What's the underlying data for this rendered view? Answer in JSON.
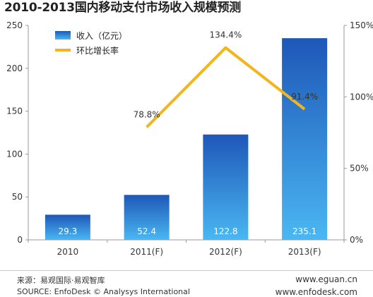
{
  "chart_data": {
    "type": "bar",
    "title": "2010-2013国内移动支付市场收入规模预测",
    "categories": [
      "2010",
      "2011(F)",
      "2012(F)",
      "2013(F)"
    ],
    "series": [
      {
        "name": "收入（亿元）",
        "type": "bar",
        "axis": "left",
        "values": [
          29.3,
          52.4,
          122.8,
          235.1
        ],
        "data_labels": [
          "29.3",
          "52.4",
          "122.8",
          "235.1"
        ]
      },
      {
        "name": "环比增长率",
        "type": "line",
        "axis": "right",
        "values": [
          null,
          78.8,
          134.4,
          91.4
        ],
        "data_labels": [
          "",
          "78.8%",
          "134.4%",
          "91.4%"
        ]
      }
    ],
    "y_left": {
      "ylim": [
        0,
        250
      ],
      "ticks": [
        "0",
        "50",
        "100",
        "150",
        "200",
        "250"
      ]
    },
    "y_right": {
      "ylim": [
        0,
        150
      ],
      "ticks": [
        "0%",
        "50%",
        "100%",
        "150%"
      ]
    },
    "grid": false,
    "legend_position": "top-left",
    "colors": {
      "bar_top": "#1e57b8",
      "bar_bottom": "#4ab7f2",
      "line": "#f2b51b",
      "axis": "#9a9a9a"
    }
  },
  "footer": {
    "source_cn": "来源：易观国际·易观智库",
    "source_en": "SOURCE: EnfoDesk © Analysys International",
    "url1": "www.eguan.cn",
    "url2": "www.enfodesk.com"
  }
}
